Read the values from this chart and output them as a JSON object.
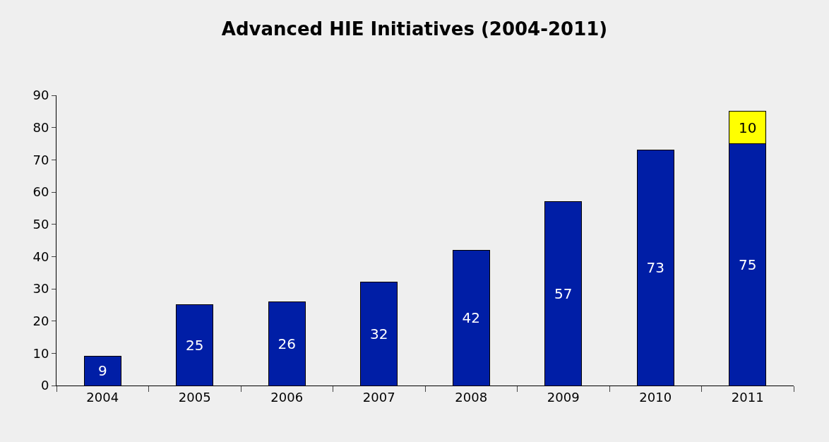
{
  "chart_data": {
    "type": "bar",
    "title": "Advanced HIE Initiatives (2004-2011)",
    "categories": [
      "2004",
      "2005",
      "2006",
      "2007",
      "2008",
      "2009",
      "2010",
      "2011"
    ],
    "series": [
      {
        "color": "#001ea6",
        "values": [
          9,
          25,
          26,
          32,
          42,
          57,
          73,
          75
        ]
      },
      {
        "color": "#ffff00",
        "values": [
          null,
          null,
          null,
          null,
          null,
          null,
          null,
          10
        ]
      }
    ],
    "stacked": true,
    "data_labels": true,
    "ylim": [
      0,
      90
    ],
    "yticks": [
      0,
      10,
      20,
      30,
      40,
      50,
      60,
      70,
      80,
      90
    ],
    "grid": false,
    "legend": false
  }
}
